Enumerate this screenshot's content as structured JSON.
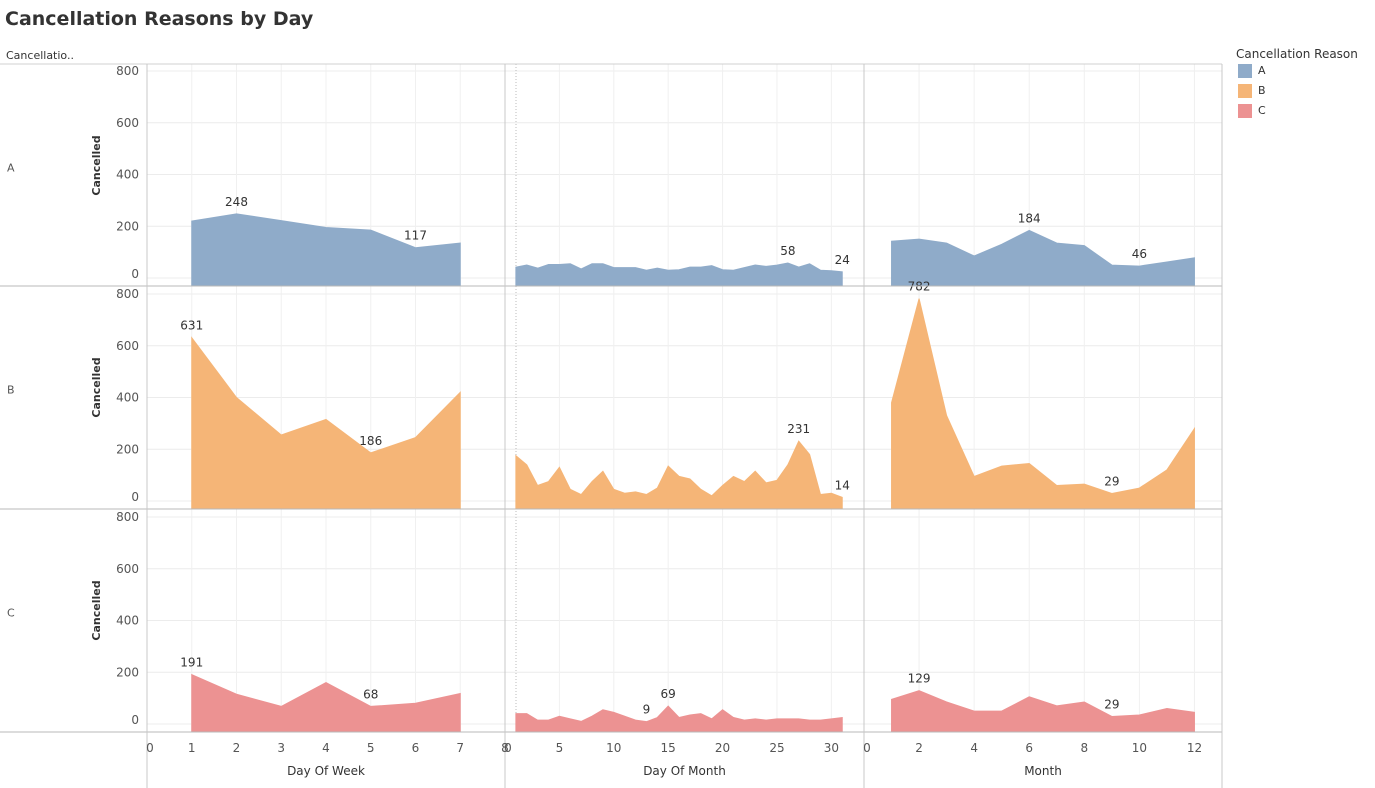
{
  "title": "Cancellation Reasons by Day",
  "legend": {
    "title": "Cancellation Reason",
    "items": [
      {
        "label": "A",
        "color": "#8fabc9"
      },
      {
        "label": "B",
        "color": "#f5b577"
      },
      {
        "label": "C",
        "color": "#ec9292"
      }
    ]
  },
  "chart_data": {
    "type": "area",
    "row_field_header": "Cancellatio..",
    "ylabel": "Cancelled",
    "ylim": [
      0,
      800
    ],
    "yticks": [
      0,
      200,
      400,
      600,
      800
    ],
    "grid": true,
    "legend_position": "top-right",
    "rows": [
      "A",
      "B",
      "C"
    ],
    "columns": [
      {
        "xlabel": "Day Of Week",
        "xlim": [
          0,
          8
        ],
        "xticks": [
          0,
          1,
          2,
          3,
          4,
          5,
          6,
          7,
          8
        ],
        "x": [
          1,
          2,
          3,
          4,
          5,
          6,
          7
        ],
        "series": {
          "A": [
            220,
            248,
            222,
            195,
            185,
            117,
            135
          ],
          "B": [
            631,
            400,
            255,
            315,
            186,
            245,
            420
          ],
          "C": [
            191,
            115,
            68,
            160,
            68,
            80,
            118
          ]
        },
        "labels": {
          "A": [
            {
              "x": 2,
              "y": 248,
              "text": "248"
            },
            {
              "x": 6,
              "y": 117,
              "text": "117"
            }
          ],
          "B": [
            {
              "x": 1,
              "y": 631,
              "text": "631"
            },
            {
              "x": 5,
              "y": 186,
              "text": "186"
            }
          ],
          "C": [
            {
              "x": 1,
              "y": 191,
              "text": "191"
            },
            {
              "x": 5,
              "y": 68,
              "text": "68"
            }
          ]
        }
      },
      {
        "xlabel": "Day Of Month",
        "xlim": [
          0,
          33
        ],
        "xticks": [
          0,
          5,
          10,
          15,
          20,
          25,
          30
        ],
        "x": [
          1,
          2,
          3,
          4,
          5,
          6,
          7,
          8,
          9,
          10,
          11,
          12,
          13,
          14,
          15,
          16,
          17,
          18,
          19,
          20,
          21,
          22,
          23,
          24,
          25,
          26,
          27,
          28,
          29,
          30,
          31
        ],
        "series": {
          "A": [
            42,
            50,
            38,
            52,
            52,
            55,
            35,
            55,
            55,
            40,
            40,
            40,
            30,
            38,
            30,
            32,
            42,
            42,
            48,
            32,
            30,
            40,
            50,
            45,
            50,
            58,
            42,
            55,
            30,
            28,
            24
          ],
          "B": [
            175,
            140,
            60,
            75,
            130,
            45,
            25,
            75,
            115,
            45,
            30,
            35,
            25,
            50,
            135,
            95,
            85,
            45,
            20,
            60,
            95,
            75,
            115,
            70,
            80,
            140,
            231,
            180,
            25,
            30,
            14
          ],
          "C": [
            40,
            40,
            15,
            15,
            30,
            20,
            10,
            30,
            55,
            45,
            30,
            15,
            9,
            25,
            69,
            25,
            35,
            40,
            20,
            55,
            25,
            15,
            20,
            15,
            20,
            20,
            20,
            15,
            15,
            20,
            25
          ]
        },
        "labels": {
          "A": [
            {
              "x": 26,
              "y": 58,
              "text": "58"
            },
            {
              "x": 31,
              "y": 24,
              "text": "24"
            }
          ],
          "B": [
            {
              "x": 27,
              "y": 231,
              "text": "231"
            },
            {
              "x": 31,
              "y": 14,
              "text": "14"
            }
          ],
          "C": [
            {
              "x": 13,
              "y": 9,
              "text": "9"
            },
            {
              "x": 15,
              "y": 69,
              "text": "69"
            }
          ]
        }
      },
      {
        "xlabel": "Month",
        "xlim": [
          0,
          13
        ],
        "xticks": [
          0,
          2,
          4,
          6,
          8,
          10,
          12
        ],
        "x": [
          1,
          2,
          3,
          4,
          5,
          6,
          7,
          8,
          9,
          10,
          11,
          12
        ],
        "series": {
          "A": [
            142,
            150,
            135,
            85,
            130,
            184,
            135,
            125,
            50,
            46,
            62,
            78
          ],
          "B": [
            380,
            782,
            330,
            95,
            135,
            145,
            60,
            65,
            29,
            50,
            120,
            280
          ],
          "C": [
            95,
            129,
            85,
            50,
            50,
            105,
            70,
            85,
            29,
            35,
            60,
            45
          ]
        },
        "labels": {
          "A": [
            {
              "x": 6,
              "y": 184,
              "text": "184"
            },
            {
              "x": 10,
              "y": 46,
              "text": "46"
            }
          ],
          "B": [
            {
              "x": 2,
              "y": 782,
              "text": "782"
            },
            {
              "x": 9,
              "y": 29,
              "text": "29"
            }
          ],
          "C": [
            {
              "x": 2,
              "y": 129,
              "text": "129"
            },
            {
              "x": 9,
              "y": 29,
              "text": "29"
            }
          ]
        }
      }
    ]
  }
}
